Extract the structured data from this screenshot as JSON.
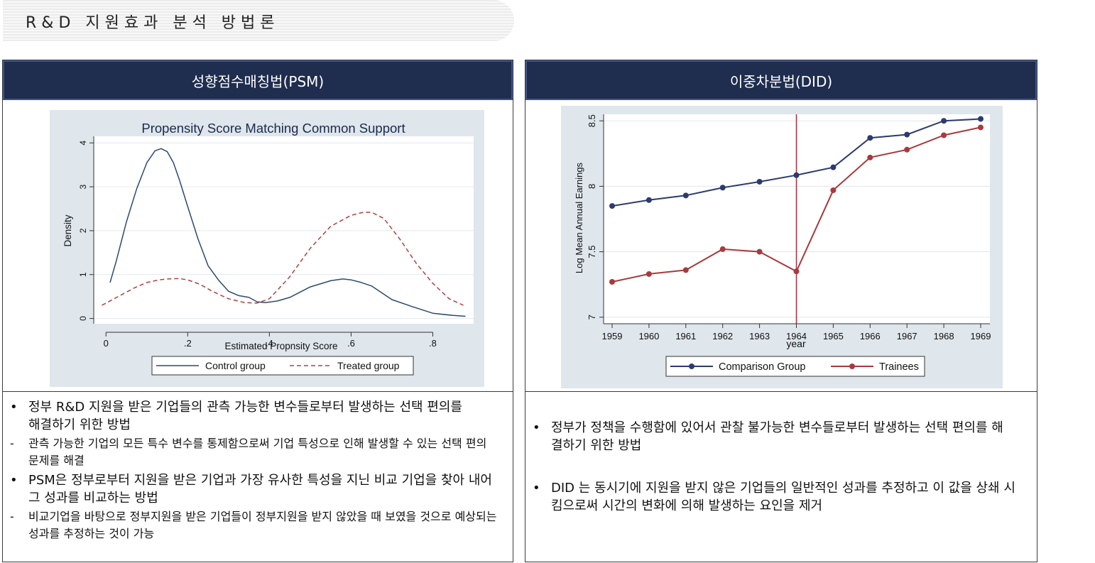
{
  "page_title": "R&D 지원효과 분석 방법론",
  "left_panel": {
    "header": "성향점수매칭법(PSM)",
    "bullets": [
      {
        "mark": "•",
        "text": "정부 R&D 지원을 받은 기업들의 관측 가능한 변수들로부터 발생하는 선택 편의를 해결하기 위한 방법"
      },
      {
        "mark": "-",
        "text": "관측 가능한 기업의 모든 특수 변수를 통제함으로써 기업 특성으로 인해 발생할 수 있는 선택 편의 문제를 해결"
      },
      {
        "mark": "•",
        "text": "PSM은 정부로부터 지원을 받은 기업과 가장 유사한 특성을 지닌 비교 기업을 찾아 내어 그 성과를 비교하는 방법"
      },
      {
        "mark": "-",
        "text": "비교기업을 바탕으로 정부지원을 받은 기업들이 정부지원을 받지 않았을 때 보였을 것으로 예상되는 성과를 추정하는 것이 가능"
      }
    ]
  },
  "right_panel": {
    "header": "이중차분법(DID)",
    "bullets": [
      {
        "mark": "•",
        "text": "정부가 정책을 수행함에 있어서 관찰 불가능한 변수들로부터 발생하는 선택 편의를 해결하기 위한 방법"
      },
      {
        "mark": "•",
        "text": "DID 는 동시기에 지원을 받지 않은 기업들의 일반적인 성과를 추정하고 이 값을 상쇄 시킴으로써 시간의 변화에 의해 발생하는 요인을 제거"
      }
    ]
  },
  "chart_data": [
    {
      "type": "line",
      "title": "Propensity Score Matching Common Support",
      "xlabel": "Estimated Propnsity Score",
      "ylabel": "Density",
      "xlim": [
        -0.03,
        0.9
      ],
      "ylim": [
        -0.12,
        4.15
      ],
      "x_ticks": [
        0,
        0.2,
        0.4,
        0.6,
        0.8
      ],
      "x_tick_labels": [
        "0",
        ".2",
        ".4",
        ".6",
        ".8"
      ],
      "y_ticks": [
        0,
        1,
        2,
        3,
        4
      ],
      "y_tick_labels": [
        "0",
        "1",
        "2",
        "3",
        "4"
      ],
      "grid": true,
      "legend_position": "bottom",
      "series": [
        {
          "name": "Control group",
          "color": "#2c4a6e",
          "style": "solid",
          "x": [
            0.01,
            0.025,
            0.05,
            0.075,
            0.1,
            0.12,
            0.135,
            0.15,
            0.165,
            0.18,
            0.2,
            0.225,
            0.25,
            0.275,
            0.3,
            0.325,
            0.35,
            0.37,
            0.39,
            0.42,
            0.45,
            0.5,
            0.55,
            0.58,
            0.6,
            0.625,
            0.65,
            0.7,
            0.75,
            0.8,
            0.85,
            0.88
          ],
          "y": [
            0.82,
            1.3,
            2.2,
            2.95,
            3.55,
            3.82,
            3.87,
            3.8,
            3.55,
            3.15,
            2.55,
            1.82,
            1.2,
            0.88,
            0.62,
            0.52,
            0.48,
            0.38,
            0.36,
            0.4,
            0.48,
            0.72,
            0.86,
            0.9,
            0.88,
            0.82,
            0.74,
            0.43,
            0.27,
            0.12,
            0.07,
            0.05
          ]
        },
        {
          "name": "Treated group",
          "color": "#b04040",
          "style": "dashed",
          "x": [
            -0.01,
            0.03,
            0.07,
            0.1,
            0.13,
            0.15,
            0.18,
            0.2,
            0.23,
            0.26,
            0.3,
            0.34,
            0.37,
            0.4,
            0.45,
            0.5,
            0.55,
            0.6,
            0.63,
            0.65,
            0.68,
            0.72,
            0.76,
            0.8,
            0.84,
            0.875
          ],
          "y": [
            0.3,
            0.5,
            0.7,
            0.82,
            0.88,
            0.9,
            0.91,
            0.88,
            0.78,
            0.62,
            0.45,
            0.36,
            0.35,
            0.45,
            0.95,
            1.6,
            2.1,
            2.35,
            2.42,
            2.42,
            2.28,
            1.8,
            1.25,
            0.8,
            0.45,
            0.3
          ]
        }
      ]
    },
    {
      "type": "line",
      "xlabel": "year",
      "ylabel": "Log Mean Annual Earnings",
      "categories": [
        "1959",
        "1960",
        "1961",
        "1962",
        "1963",
        "1964",
        "1965",
        "1966",
        "1967",
        "1968",
        "1969"
      ],
      "ylim": [
        6.95,
        8.55
      ],
      "y_ticks": [
        7,
        7.5,
        8,
        8.5
      ],
      "y_tick_labels": [
        "7",
        "7.5",
        "8",
        "8.5"
      ],
      "grid": true,
      "legend_position": "bottom",
      "vertical_line_at": "1964",
      "vertical_line_color": "#b22a3a",
      "series": [
        {
          "name": "Comparison Group",
          "color": "#2c3a6e",
          "values": [
            7.85,
            7.895,
            7.93,
            7.99,
            8.035,
            8.085,
            8.145,
            8.37,
            8.395,
            8.5,
            8.515
          ]
        },
        {
          "name": "Trainees",
          "color": "#a83a3e",
          "values": [
            7.27,
            7.33,
            7.36,
            7.52,
            7.5,
            7.35,
            7.97,
            8.22,
            8.28,
            8.39,
            8.45
          ]
        }
      ]
    }
  ]
}
